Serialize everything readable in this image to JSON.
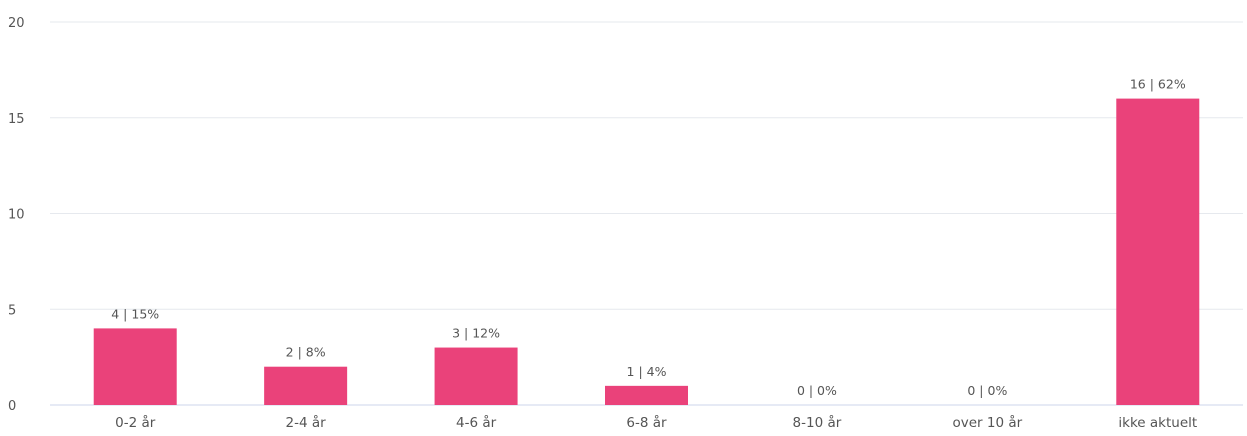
{
  "chart_data": {
    "type": "bar",
    "categories": [
      "0-2 år",
      "2-4 år",
      "4-6 år",
      "6-8 år",
      "8-10 år",
      "over 10 år",
      "ikke aktuelt"
    ],
    "values": [
      4,
      2,
      3,
      1,
      0,
      0,
      16
    ],
    "data_labels": [
      "4 | 15%",
      "2 | 8%",
      "3 | 12%",
      "1 | 4%",
      "0 | 0%",
      "0 | 0%",
      "16 | 62%"
    ],
    "ylim": [
      0,
      20
    ],
    "yticks": [
      0,
      5,
      10,
      15,
      20
    ],
    "grid": true,
    "title": "",
    "xlabel": "",
    "ylabel": "",
    "colors": {
      "bar": "#ea427a",
      "grid": "#e6e9ee",
      "axis_line": "#ccd6eb",
      "tick_text": "#555555",
      "data_label_text": "#555555"
    }
  }
}
